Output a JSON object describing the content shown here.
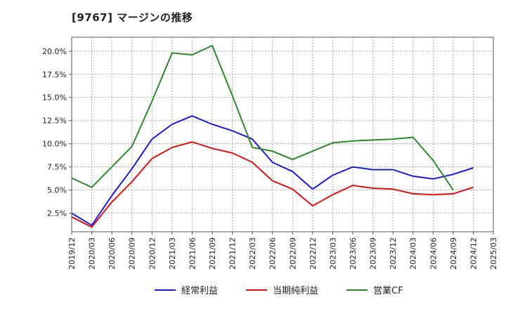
{
  "title": "[9767]  マージンの推移",
  "chart_data": {
    "type": "line",
    "ylim": [
      0.5,
      21.5
    ],
    "y_ticks": [
      2.5,
      5.0,
      7.5,
      10.0,
      12.5,
      15.0,
      17.5,
      20.0
    ],
    "y_tick_labels": [
      "2.5%",
      "5.0%",
      "7.5%",
      "10.0%",
      "12.5%",
      "15.0%",
      "17.5%",
      "20.0%"
    ],
    "x": [
      "2019/12",
      "2020/03",
      "2020/06",
      "2020/09",
      "2020/12",
      "2021/03",
      "2021/06",
      "2021/09",
      "2021/12",
      "2022/03",
      "2022/06",
      "2022/09",
      "2022/12",
      "2023/03",
      "2023/06",
      "2023/09",
      "2023/12",
      "2024/03",
      "2024/06",
      "2024/09",
      "2024/12",
      "2025/03"
    ],
    "grid": true,
    "legend_position": "bottom",
    "series": [
      {
        "name": "経常利益",
        "color": "#1a1adc",
        "values": [
          2.5,
          1.2,
          4.4,
          7.3,
          10.5,
          12.1,
          13.0,
          12.1,
          11.4,
          10.5,
          8.0,
          7.0,
          5.1,
          6.6,
          7.5,
          7.2,
          7.2,
          6.5,
          6.2,
          6.7,
          7.4,
          null
        ]
      },
      {
        "name": "当期純利益",
        "color": "#e01010",
        "values": [
          2.1,
          1.0,
          3.7,
          5.9,
          8.4,
          9.6,
          10.2,
          9.5,
          9.0,
          8.0,
          6.0,
          5.1,
          3.3,
          4.5,
          5.5,
          5.2,
          5.1,
          4.6,
          4.5,
          4.6,
          5.3,
          null
        ]
      },
      {
        "name": "営業CF",
        "color": "#2a8a2a",
        "values": [
          6.3,
          5.3,
          7.5,
          9.7,
          14.6,
          19.8,
          19.6,
          20.6,
          15.2,
          9.6,
          9.2,
          8.3,
          9.2,
          10.1,
          10.3,
          10.4,
          10.5,
          10.7,
          8.2,
          5.0,
          null,
          null
        ]
      }
    ]
  }
}
